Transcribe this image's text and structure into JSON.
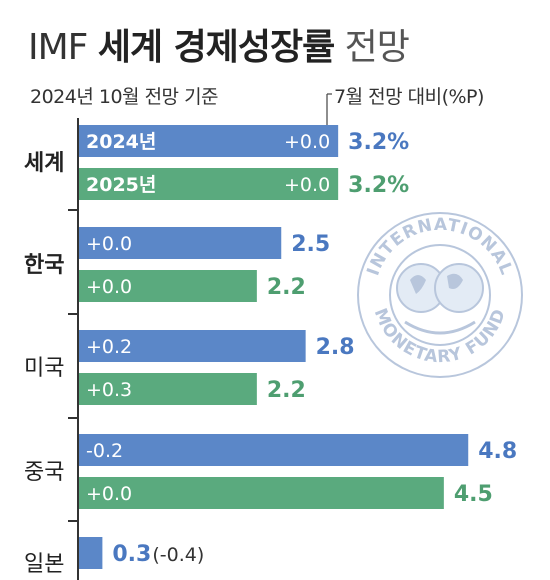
{
  "header": {
    "title_prefix": "IMF",
    "title_main": "세계 경제성장률",
    "title_suffix": "전망",
    "subtitle": "2024년 10월 전망 기준",
    "change_note": "7월 전망 대비(%P)"
  },
  "colors": {
    "series_2024": "#5b87c8",
    "series_2025": "#5aaa7e",
    "value_2024": "#4a78c0",
    "value_2025": "#4e9e70",
    "axis": "#333333"
  },
  "seal": {
    "text_top": "INTERNATIONAL",
    "text_bottom": "MONETARY FUND"
  },
  "chart_data": {
    "type": "bar",
    "orientation": "horizontal",
    "categories": [
      "세계",
      "한국",
      "미국",
      "중국",
      "일본"
    ],
    "series": [
      {
        "name": "2024년",
        "values": [
          3.2,
          2.5,
          2.8,
          4.8,
          0.3
        ],
        "changes": [
          "+0.0",
          "+0.0",
          "+0.2",
          "-0.2",
          "(-0.4)"
        ]
      },
      {
        "name": "2025년",
        "values": [
          3.2,
          2.2,
          2.2,
          4.5,
          null
        ],
        "changes": [
          "+0.0",
          "+0.0",
          "+0.3",
          "+0.0",
          null
        ]
      }
    ],
    "value_labels": [
      [
        "3.2%",
        "3.2%"
      ],
      [
        "2.5",
        "2.2"
      ],
      [
        "2.8",
        "2.2"
      ],
      [
        "4.8",
        "4.5"
      ],
      [
        "0.3",
        null
      ]
    ],
    "bold_categories": [
      "세계",
      "한국"
    ]
  }
}
